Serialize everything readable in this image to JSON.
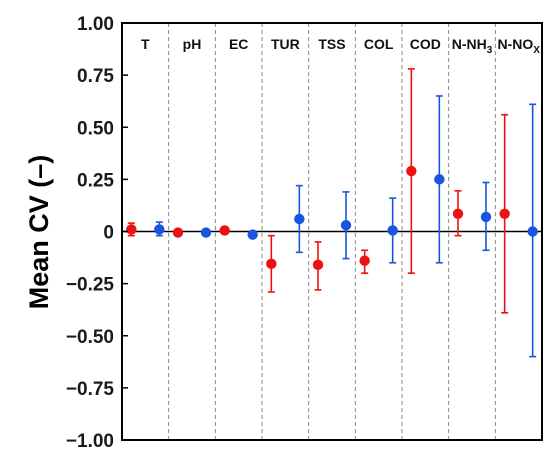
{
  "chart_data": {
    "type": "scatter",
    "title": "",
    "ylabel": "Mean CV (–)",
    "xlabel": "",
    "ylim": [
      -1.0,
      1.0
    ],
    "yticks": [
      1.0,
      0.75,
      0.5,
      0.25,
      0,
      -0.25,
      -0.5,
      -0.75,
      -1.0
    ],
    "ytick_labels": [
      "1.00",
      "0.75",
      "0.50",
      "0.25",
      "0",
      "−0.25",
      "−0.50",
      "−0.75",
      "−1.00"
    ],
    "grid": false,
    "legend": "none",
    "zero_line": true,
    "panel_separators": "dashed",
    "colors": {
      "red": "#ee1111",
      "blue": "#1a55dd",
      "axis": "#000000",
      "separator": "#888888"
    },
    "categories": [
      {
        "label": "T",
        "sub": "",
        "sub_after": ""
      },
      {
        "label": "pH",
        "sub": "",
        "sub_after": ""
      },
      {
        "label": "EC",
        "sub": "",
        "sub_after": ""
      },
      {
        "label": "TUR",
        "sub": "",
        "sub_after": ""
      },
      {
        "label": "TSS",
        "sub": "",
        "sub_after": ""
      },
      {
        "label": "COL",
        "sub": "",
        "sub_after": ""
      },
      {
        "label": "COD",
        "sub": "",
        "sub_after": ""
      },
      {
        "label": "N-NH",
        "sub": "3",
        "sub_after": ""
      },
      {
        "label": "N-NO",
        "sub": "X",
        "sub_after": ""
      }
    ],
    "series": [
      {
        "color": "red",
        "points": [
          {
            "mean": 0.01,
            "low": -0.02,
            "high": 0.04
          },
          {
            "mean": -0.005,
            "low": -0.01,
            "high": 0.0
          },
          {
            "mean": 0.005,
            "low": 0.0,
            "high": 0.01
          },
          {
            "mean": -0.155,
            "low": -0.29,
            "high": -0.02
          },
          {
            "mean": -0.16,
            "low": -0.28,
            "high": -0.05
          },
          {
            "mean": -0.14,
            "low": -0.2,
            "high": -0.09
          },
          {
            "mean": 0.29,
            "low": -0.2,
            "high": 0.78
          },
          {
            "mean": 0.085,
            "low": -0.02,
            "high": 0.195
          },
          {
            "mean": 0.085,
            "low": -0.39,
            "high": 0.56
          }
        ]
      },
      {
        "color": "blue",
        "points": [
          {
            "mean": 0.01,
            "low": -0.02,
            "high": 0.045
          },
          {
            "mean": -0.005,
            "low": -0.01,
            "high": 0.0
          },
          {
            "mean": -0.015,
            "low": -0.02,
            "high": -0.01
          },
          {
            "mean": 0.06,
            "low": -0.1,
            "high": 0.22
          },
          {
            "mean": 0.03,
            "low": -0.13,
            "high": 0.19
          },
          {
            "mean": 0.005,
            "low": -0.15,
            "high": 0.16
          },
          {
            "mean": 0.25,
            "low": -0.15,
            "high": 0.65
          },
          {
            "mean": 0.07,
            "low": -0.09,
            "high": 0.235
          },
          {
            "mean": 0.0,
            "low": -0.6,
            "high": 0.61
          }
        ]
      }
    ]
  }
}
